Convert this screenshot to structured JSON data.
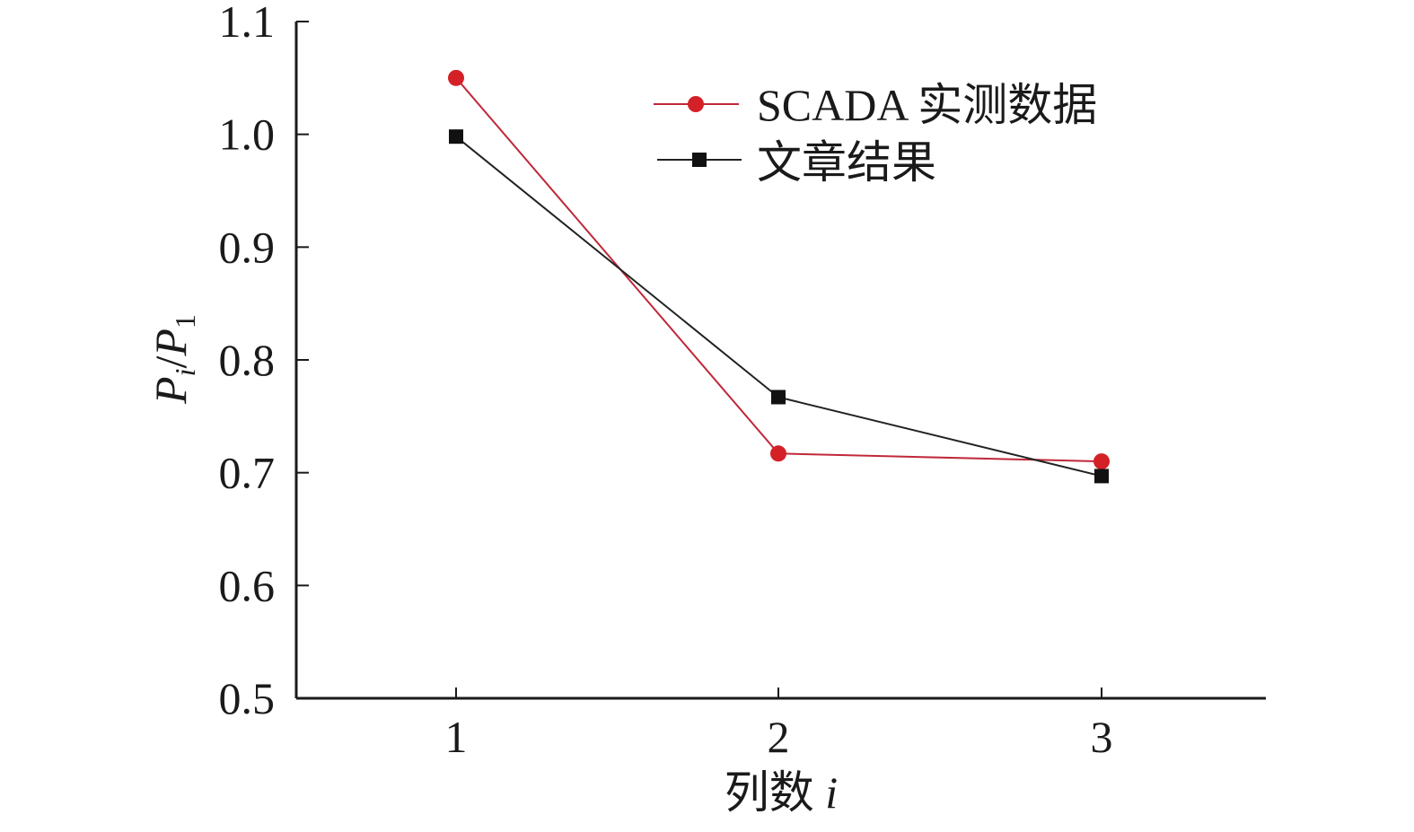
{
  "chart_data": {
    "type": "line",
    "title": "",
    "xlabel": "列数",
    "xlabel_var": "i",
    "ylabel": {
      "num": "P",
      "num_sub": "i",
      "sep": "/",
      "den": "P",
      "den_sub": "1"
    },
    "x_ticks": [
      "1",
      "2",
      "3"
    ],
    "y_ticks": [
      "0.5",
      "0.6",
      "0.7",
      "0.8",
      "0.9",
      "1.0",
      "1.1"
    ],
    "xlim": [
      0.5,
      3.5
    ],
    "ylim": [
      0.5,
      1.1
    ],
    "grid": false,
    "legend_position": "top-right",
    "series": [
      {
        "name": "SCADA 实测数据",
        "marker": "circle",
        "color": "#d42027",
        "line_color": "#c0283a",
        "x": [
          1,
          2,
          3
        ],
        "y": [
          1.05,
          0.717,
          0.71
        ]
      },
      {
        "name": "文章结果",
        "marker": "square",
        "color": "#111111",
        "line_color": "#222222",
        "x": [
          1,
          2,
          3
        ],
        "y": [
          0.998,
          0.767,
          0.697
        ]
      }
    ]
  }
}
